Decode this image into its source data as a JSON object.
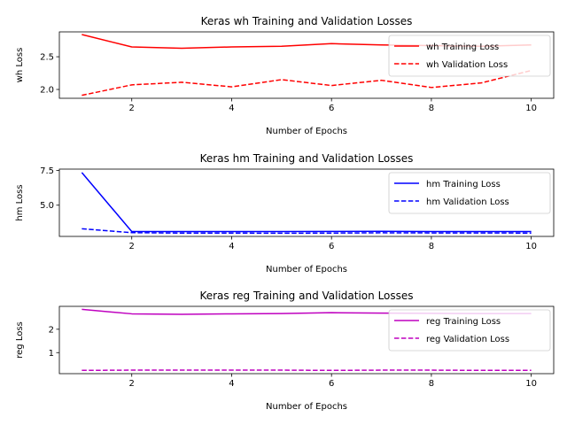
{
  "chart_data": [
    {
      "type": "line",
      "title": "Keras wh Training and Validation Losses",
      "xlabel": "Number of Epochs",
      "ylabel": "wh Loss",
      "x": [
        1,
        2,
        3,
        4,
        5,
        6,
        7,
        8,
        9,
        10
      ],
      "xlim": [
        0.55,
        10.45
      ],
      "ylim": [
        1.865,
        2.88
      ],
      "xticks": [
        2,
        4,
        6,
        8,
        10
      ],
      "yticks": [
        2.0,
        2.5
      ],
      "ytick_labels": [
        "2.0",
        "2.5"
      ],
      "grid": false,
      "legend_position": "top-right",
      "series": [
        {
          "name": "wh Training Loss",
          "style": "solid",
          "color": "#ff0000",
          "values": [
            2.84,
            2.65,
            2.63,
            2.65,
            2.66,
            2.7,
            2.68,
            2.67,
            2.66,
            2.68
          ]
        },
        {
          "name": "wh Validation Loss",
          "style": "dashed",
          "color": "#ff0000",
          "values": [
            1.91,
            2.07,
            2.11,
            2.04,
            2.15,
            2.06,
            2.14,
            2.03,
            2.1,
            2.29
          ]
        }
      ]
    },
    {
      "type": "line",
      "title": "Keras hm Training and Validation Losses",
      "xlabel": "Number of Epochs",
      "ylabel": "hm Loss",
      "x": [
        1,
        2,
        3,
        4,
        5,
        6,
        7,
        8,
        9,
        10
      ],
      "xlim": [
        0.55,
        10.45
      ],
      "ylim": [
        2.75,
        7.6
      ],
      "xticks": [
        2,
        4,
        6,
        8,
        10
      ],
      "yticks": [
        5.0,
        7.5
      ],
      "ytick_labels": [
        "5.0",
        "7.5"
      ],
      "grid": false,
      "legend_position": "top-right",
      "series": [
        {
          "name": "hm Training Loss",
          "style": "solid",
          "color": "#0000ff",
          "values": [
            7.35,
            3.1,
            3.1,
            3.1,
            3.1,
            3.11,
            3.12,
            3.1,
            3.1,
            3.1
          ]
        },
        {
          "name": "hm Validation Loss",
          "style": "dashed",
          "color": "#0000ff",
          "values": [
            3.3,
            3.02,
            2.99,
            2.99,
            2.98,
            2.99,
            3.01,
            3.0,
            3.0,
            2.99
          ]
        }
      ]
    },
    {
      "type": "line",
      "title": "Keras reg Training and Validation Losses",
      "xlabel": "Number of Epochs",
      "ylabel": "reg Loss",
      "x": [
        1,
        2,
        3,
        4,
        5,
        6,
        7,
        8,
        9,
        10
      ],
      "xlim": [
        0.55,
        10.45
      ],
      "ylim": [
        0.1,
        2.98
      ],
      "xticks": [
        2,
        4,
        6,
        8,
        10
      ],
      "yticks": [
        1,
        2
      ],
      "ytick_labels": [
        "1",
        "2"
      ],
      "grid": false,
      "legend_position": "top-right",
      "series": [
        {
          "name": "reg Training Loss",
          "style": "solid",
          "color": "#bf00bf",
          "values": [
            2.85,
            2.66,
            2.64,
            2.66,
            2.67,
            2.71,
            2.69,
            2.68,
            2.67,
            2.67
          ]
        },
        {
          "name": "reg Validation Loss",
          "style": "dashed",
          "color": "#bf00bf",
          "values": [
            0.24,
            0.25,
            0.25,
            0.25,
            0.25,
            0.24,
            0.25,
            0.25,
            0.24,
            0.24
          ]
        }
      ]
    }
  ]
}
